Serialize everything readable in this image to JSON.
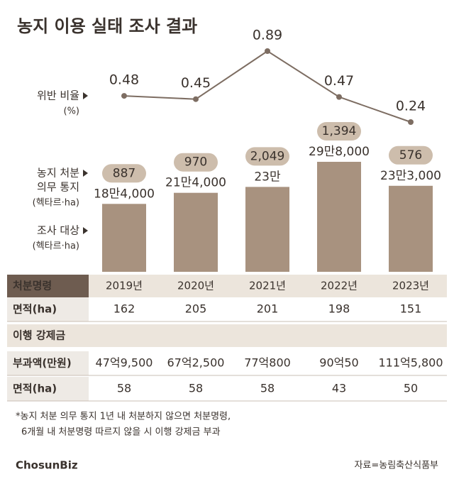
{
  "title": "농지 이용 실태 조사 결과",
  "chart_data": {
    "type": "bar",
    "categories": [
      "2019년",
      "2020년",
      "2021년",
      "2022년",
      "2023년"
    ],
    "series": [
      {
        "type": "bar",
        "name_lines": [
          "조사 대상"
        ],
        "unit": "(헥타르·ha)",
        "color": "#a8927f",
        "values": [
          184000,
          214000,
          230000,
          298000,
          233000
        ],
        "value_labels": [
          "18만4,000",
          "21만4,000",
          "23만",
          "29만8,000",
          "23만3,000"
        ]
      },
      {
        "type": "pill",
        "name_lines": [
          "농지 처분",
          "의무 통지"
        ],
        "unit": "(헥타르·ha)",
        "color": "#cdbdac",
        "values": [
          887,
          970,
          2049,
          1394,
          576
        ],
        "value_labels": [
          "887",
          "970",
          "2,049",
          "1,394",
          "576"
        ]
      },
      {
        "type": "line",
        "name_lines": [
          "위반 비율"
        ],
        "unit": "(%)",
        "color": "#7d6d62",
        "values": [
          0.48,
          0.45,
          0.89,
          0.47,
          0.24
        ]
      }
    ]
  },
  "table": {
    "header": "처분명령",
    "rows": [
      [
        "면적(ha)",
        "162",
        "205",
        "201",
        "198",
        "151"
      ]
    ],
    "section": "이행 강제금",
    "section_rows": [
      [
        "부과액(만원)",
        "47억9,500",
        "67억2,500",
        "77억800",
        "90억50",
        "111억5,800"
      ],
      [
        "면적(ha)",
        "58",
        "58",
        "58",
        "43",
        "50"
      ]
    ]
  },
  "footnote": [
    "*농지 처분 의무 통지 1년 내 처분하지 않으면 처분명령,",
    "6개월 내 처분명령 따르지 않을 시 이행 강제금 부과"
  ],
  "logo": "ChosunBiz",
  "source": "자료=농림축산식품부"
}
